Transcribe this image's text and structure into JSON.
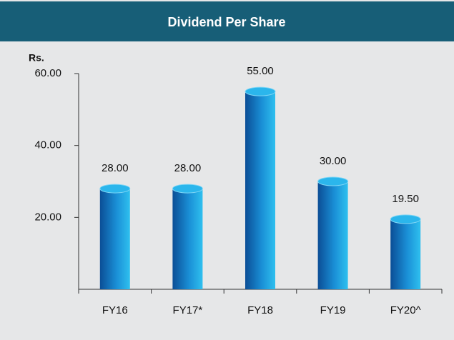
{
  "chart_data": {
    "type": "bar",
    "title": "Dividend Per Share",
    "y_label": "Rs.",
    "categories": [
      "FY16",
      "FY17*",
      "FY18",
      "FY19",
      "FY20^"
    ],
    "values": [
      28,
      28,
      55,
      30,
      19.5
    ],
    "value_labels": [
      "28.00",
      "28.00",
      "55.00",
      "30.00",
      "19.50"
    ],
    "color": "#1a8fd6",
    "ylim": [
      0,
      60
    ],
    "yticks": [
      {
        "value": 20,
        "label": "20.00"
      },
      {
        "value": 40,
        "label": "40.00"
      },
      {
        "value": 60,
        "label": "60.00"
      }
    ],
    "grid": false
  }
}
